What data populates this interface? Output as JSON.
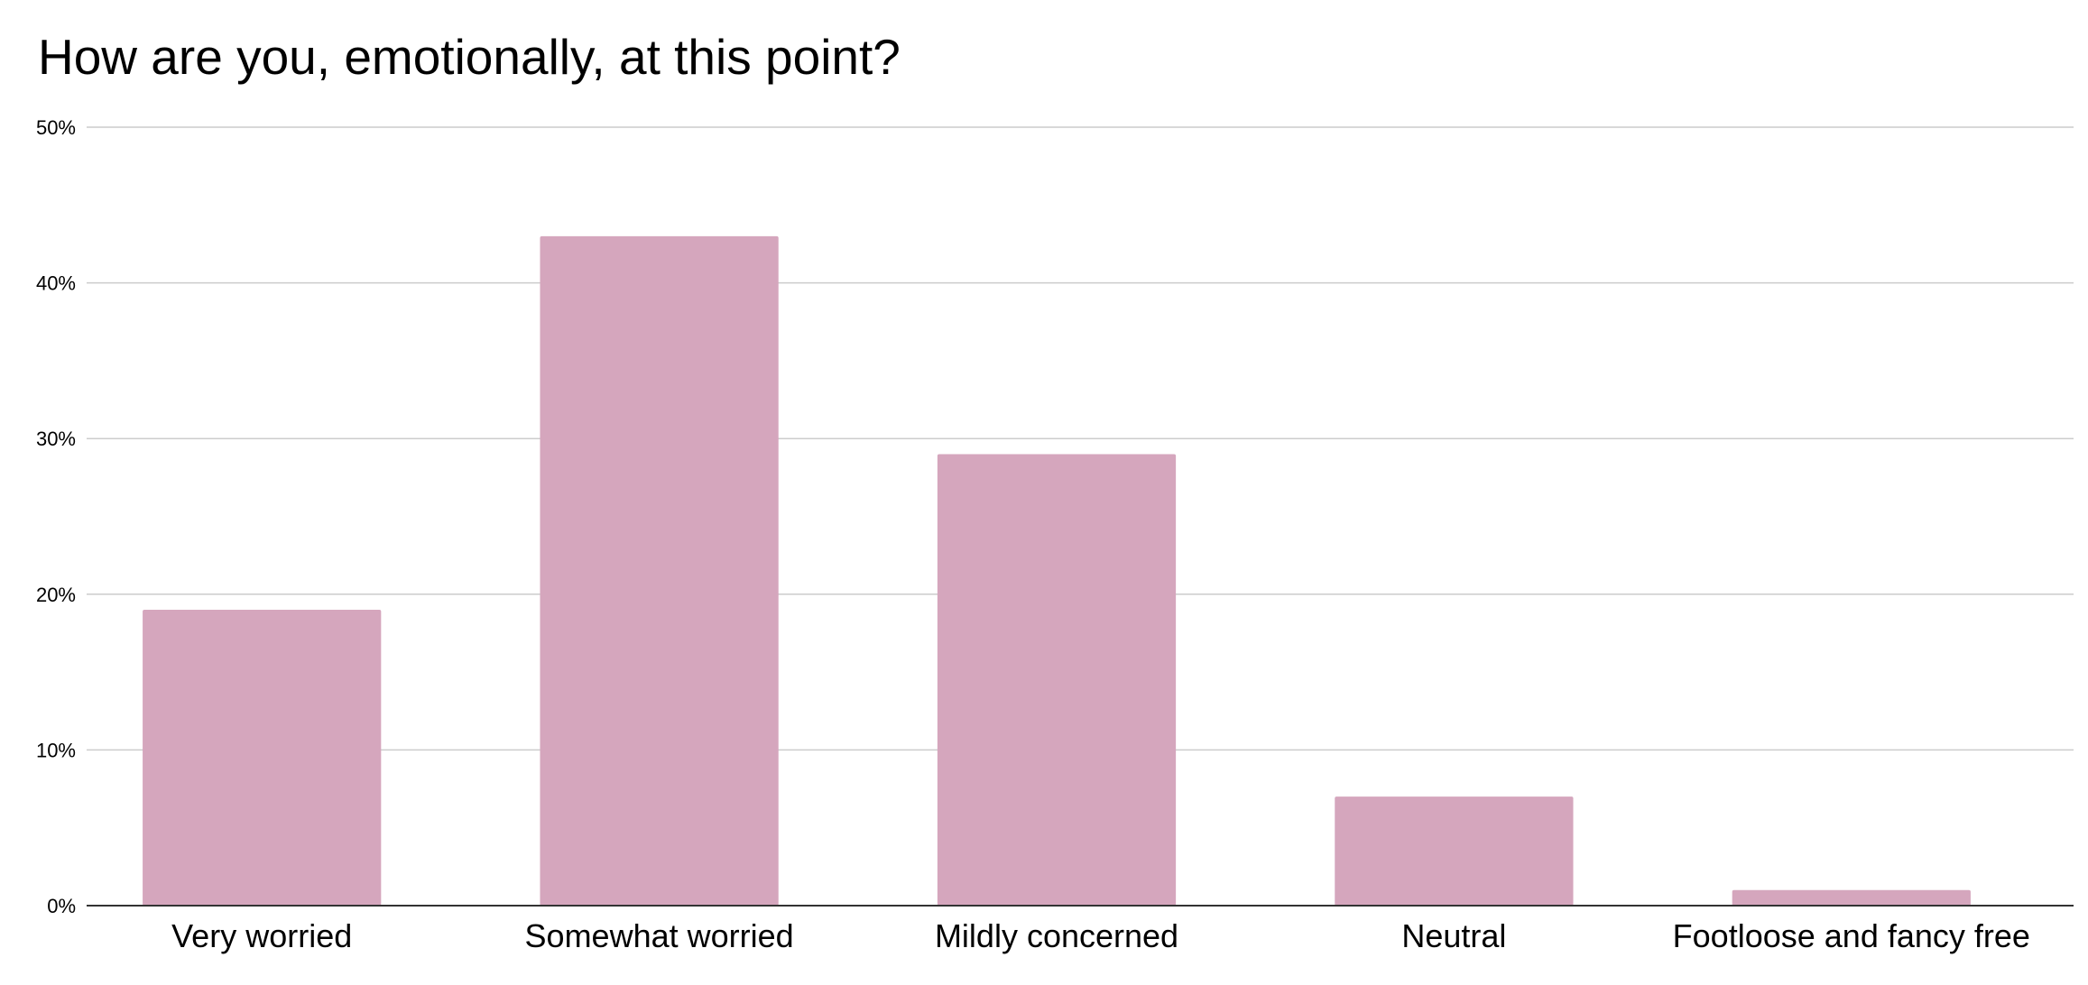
{
  "chart_data": {
    "type": "bar",
    "title": "How are you, emotionally, at this point?",
    "categories": [
      "Very worried",
      "Somewhat worried",
      "Mildly concerned",
      "Neutral",
      "Footloose and fancy free"
    ],
    "series": [
      {
        "values": [
          19,
          43,
          29,
          7,
          1
        ]
      }
    ],
    "xlabel": "",
    "ylabel": "",
    "ylim": [
      0,
      50
    ],
    "yticks": [
      0,
      10,
      20,
      30,
      40,
      50
    ],
    "ytick_labels": [
      "0%",
      "10%",
      "20%",
      "30%",
      "40%",
      "50%"
    ],
    "grid": true,
    "legend": "none",
    "bar_color": "#d5a6bd"
  }
}
